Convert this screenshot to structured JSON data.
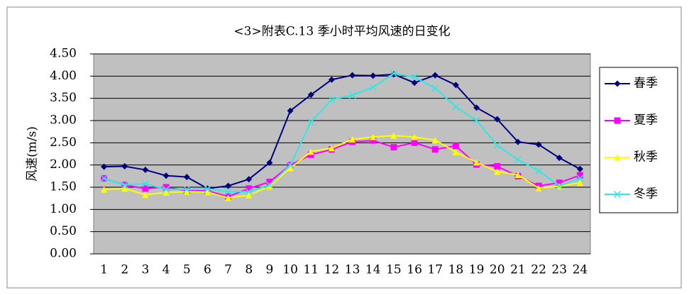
{
  "chart_data": {
    "type": "line",
    "title": "<3>附表C.13 季小时平均风速的日变化",
    "y_label": "风速(m/s)",
    "categories": [
      "1",
      "2",
      "3",
      "4",
      "5",
      "6",
      "7",
      "8",
      "9",
      "10",
      "11",
      "12",
      "13",
      "14",
      "15",
      "16",
      "17",
      "18",
      "19",
      "20",
      "21",
      "22",
      "23",
      "24"
    ],
    "ylim": [
      0,
      4.5
    ],
    "yticks": [
      {
        "value": 0,
        "label": "0.00"
      },
      {
        "value": 0.5,
        "label": "0.50"
      },
      {
        "value": 1,
        "label": "1.00"
      },
      {
        "value": 1.5,
        "label": "1.50"
      },
      {
        "value": 2,
        "label": "2.00"
      },
      {
        "value": 2.5,
        "label": "2.50"
      },
      {
        "value": 3,
        "label": "3.00"
      },
      {
        "value": 3.5,
        "label": "3.50"
      },
      {
        "value": 4,
        "label": "4.00"
      },
      {
        "value": 4.5,
        "label": "4.50"
      }
    ],
    "grid": true,
    "legend": "right",
    "series": [
      {
        "name": "春季",
        "color": "#000080",
        "marker": "diamond",
        "values": [
          1.96,
          1.97,
          1.89,
          1.76,
          1.73,
          1.47,
          1.53,
          1.68,
          2.05,
          3.22,
          3.58,
          3.92,
          4.02,
          4.01,
          4.04,
          3.85,
          4.02,
          3.8,
          3.29,
          3.03,
          2.52,
          2.46,
          2.16,
          1.91
        ]
      },
      {
        "name": "夏季",
        "color": "#ff00ff",
        "marker": "square",
        "values": [
          1.7,
          1.55,
          1.47,
          1.5,
          1.42,
          1.42,
          1.29,
          1.47,
          1.62,
          2.0,
          2.23,
          2.35,
          2.52,
          2.55,
          2.4,
          2.5,
          2.35,
          2.43,
          2.01,
          1.97,
          1.75,
          1.53,
          1.6,
          1.77
        ]
      },
      {
        "name": "秋季",
        "color": "#ffff00",
        "marker": "triangle",
        "values": [
          1.45,
          1.47,
          1.33,
          1.38,
          1.4,
          1.39,
          1.26,
          1.32,
          1.52,
          1.93,
          2.3,
          2.38,
          2.58,
          2.63,
          2.66,
          2.63,
          2.56,
          2.29,
          2.06,
          1.85,
          1.78,
          1.48,
          1.52,
          1.6
        ]
      },
      {
        "name": "冬季",
        "color": "#33e6e6",
        "marker": "x",
        "values": [
          1.7,
          1.55,
          1.58,
          1.45,
          1.45,
          1.46,
          1.4,
          1.4,
          1.55,
          2.0,
          2.97,
          3.47,
          3.57,
          3.75,
          4.06,
          3.98,
          3.73,
          3.31,
          3.0,
          2.44,
          2.12,
          1.87,
          1.53,
          1.7
        ]
      }
    ]
  }
}
